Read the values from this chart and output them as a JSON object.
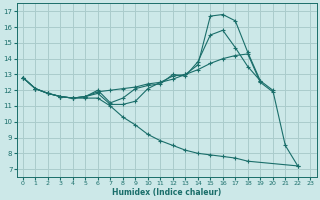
{
  "xlabel": "Humidex (Indice chaleur)",
  "xlim": [
    -0.5,
    23.5
  ],
  "ylim": [
    6.5,
    17.5
  ],
  "xticks": [
    0,
    1,
    2,
    3,
    4,
    5,
    6,
    7,
    8,
    9,
    10,
    11,
    12,
    13,
    14,
    15,
    16,
    17,
    18,
    19,
    20,
    21,
    22,
    23
  ],
  "yticks": [
    7,
    8,
    9,
    10,
    11,
    12,
    13,
    14,
    15,
    16,
    17
  ],
  "bg_color": "#cce8e8",
  "grid_color": "#aacccc",
  "line_color": "#1a6e6a",
  "series": [
    {
      "x": [
        0,
        1,
        2,
        3,
        4,
        5,
        6,
        7,
        8,
        9,
        10,
        11,
        12,
        13,
        14,
        15,
        16,
        17,
        18,
        19,
        20,
        21,
        22
      ],
      "y": [
        12.8,
        12.1,
        11.8,
        11.6,
        11.5,
        11.6,
        11.8,
        11.1,
        11.1,
        11.3,
        12.1,
        12.5,
        12.9,
        13.0,
        13.6,
        16.7,
        16.8,
        16.4,
        14.4,
        12.6,
        12.0,
        8.5,
        7.2
      ]
    },
    {
      "x": [
        0,
        1,
        2,
        3,
        4,
        5,
        6,
        7,
        8,
        9,
        10,
        11,
        12,
        13,
        14,
        15,
        16,
        17,
        18,
        19,
        20
      ],
      "y": [
        12.8,
        12.1,
        11.8,
        11.6,
        11.5,
        11.6,
        11.9,
        12.0,
        12.1,
        12.2,
        12.4,
        12.5,
        12.7,
        13.0,
        13.3,
        13.7,
        14.0,
        14.2,
        14.3,
        12.5,
        11.9
      ]
    },
    {
      "x": [
        0,
        1,
        2,
        3,
        4,
        5,
        6,
        7,
        8,
        9,
        10,
        11,
        12,
        13,
        14,
        15,
        16,
        17,
        18,
        19
      ],
      "y": [
        12.8,
        12.1,
        11.8,
        11.6,
        11.5,
        11.6,
        12.0,
        11.2,
        11.5,
        12.1,
        12.3,
        12.4,
        13.0,
        12.9,
        13.8,
        15.5,
        15.8,
        14.7,
        13.5,
        12.6
      ]
    },
    {
      "x": [
        0,
        1,
        2,
        3,
        4,
        5,
        6,
        7,
        8,
        9,
        10,
        11,
        12,
        13,
        14,
        15,
        16,
        17,
        18,
        22
      ],
      "y": [
        12.8,
        12.1,
        11.8,
        11.6,
        11.5,
        11.5,
        11.5,
        11.0,
        10.3,
        9.8,
        9.2,
        8.8,
        8.5,
        8.2,
        8.0,
        7.9,
        7.8,
        7.7,
        7.5,
        7.2
      ]
    }
  ]
}
